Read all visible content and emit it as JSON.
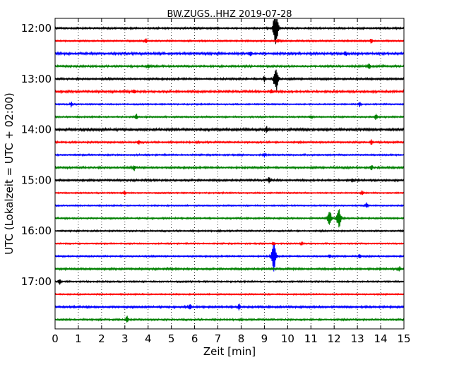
{
  "chart_data": {
    "type": "line",
    "title": "BW.ZUGS..HHZ 2019-07-28",
    "xlabel": "Zeit  [min]",
    "ylabel": "UTC (Lokalzeit = UTC + 02:00)",
    "xlim": [
      0,
      15
    ],
    "x_ticks": [
      "0",
      "1",
      "2",
      "3",
      "4",
      "5",
      "6",
      "7",
      "8",
      "9",
      "10",
      "11",
      "12",
      "13",
      "14",
      "15"
    ],
    "y_ticks": [
      {
        "label": "12:00",
        "trace": 0
      },
      {
        "label": "13:00",
        "trace": 4
      },
      {
        "label": "14:00",
        "trace": 8
      },
      {
        "label": "15:00",
        "trace": 12
      },
      {
        "label": "16:00",
        "trace": 16
      },
      {
        "label": "17:00",
        "trace": 20
      }
    ],
    "trace_interval_min": 15,
    "grid": "vertical-dotted",
    "colors": [
      "#000000",
      "#ff0000",
      "#0000ff",
      "#008000"
    ],
    "traces": [
      {
        "label": "12:00",
        "color_index": 0,
        "noise": 0.9,
        "events": [
          {
            "t": 9.4,
            "amp": 6
          },
          {
            "t": 9.5,
            "amp": 26
          }
        ]
      },
      {
        "label": "12:15",
        "color_index": 1,
        "noise": 0.8,
        "events": [
          {
            "t": 3.9,
            "amp": 3
          },
          {
            "t": 9.6,
            "amp": 3
          },
          {
            "t": 13.6,
            "amp": 4
          }
        ]
      },
      {
        "label": "12:30",
        "color_index": 2,
        "noise": 1.2,
        "events": [
          {
            "t": 8.4,
            "amp": 3
          },
          {
            "t": 12.5,
            "amp": 3
          }
        ]
      },
      {
        "label": "12:45",
        "color_index": 3,
        "noise": 1.0,
        "events": [
          {
            "t": 4.0,
            "amp": 3
          },
          {
            "t": 13.5,
            "amp": 4
          }
        ]
      },
      {
        "label": "13:00",
        "color_index": 0,
        "noise": 1.0,
        "events": [
          {
            "t": 9.0,
            "amp": 4
          },
          {
            "t": 9.5,
            "amp": 18
          }
        ]
      },
      {
        "label": "13:15",
        "color_index": 1,
        "noise": 1.1,
        "events": [
          {
            "t": 3.4,
            "amp": 3
          },
          {
            "t": 9.3,
            "amp": 3
          }
        ]
      },
      {
        "label": "13:30",
        "color_index": 2,
        "noise": 0.7,
        "events": [
          {
            "t": 0.7,
            "amp": 4
          },
          {
            "t": 13.1,
            "amp": 4
          }
        ]
      },
      {
        "label": "13:45",
        "color_index": 3,
        "noise": 0.8,
        "events": [
          {
            "t": 3.5,
            "amp": 4
          },
          {
            "t": 11.0,
            "amp": 3
          },
          {
            "t": 13.8,
            "amp": 4
          }
        ]
      },
      {
        "label": "14:00",
        "color_index": 0,
        "noise": 1.3,
        "events": [
          {
            "t": 9.1,
            "amp": 4
          }
        ]
      },
      {
        "label": "14:15",
        "color_index": 1,
        "noise": 0.9,
        "events": [
          {
            "t": 3.6,
            "amp": 3
          },
          {
            "t": 13.6,
            "amp": 4
          }
        ]
      },
      {
        "label": "14:30",
        "color_index": 2,
        "noise": 0.8,
        "events": [
          {
            "t": 9.0,
            "amp": 3
          }
        ]
      },
      {
        "label": "14:45",
        "color_index": 3,
        "noise": 1.0,
        "events": [
          {
            "t": 3.4,
            "amp": 4
          },
          {
            "t": 13.6,
            "amp": 4
          }
        ]
      },
      {
        "label": "15:00",
        "color_index": 0,
        "noise": 1.0,
        "events": [
          {
            "t": 9.2,
            "amp": 4
          },
          {
            "t": 12.8,
            "amp": 3
          }
        ]
      },
      {
        "label": "15:15",
        "color_index": 1,
        "noise": 0.7,
        "events": [
          {
            "t": 3.0,
            "amp": 3
          },
          {
            "t": 13.2,
            "amp": 4
          }
        ]
      },
      {
        "label": "15:30",
        "color_index": 2,
        "noise": 0.7,
        "events": [
          {
            "t": 13.4,
            "amp": 4
          }
        ]
      },
      {
        "label": "15:45",
        "color_index": 3,
        "noise": 0.8,
        "events": [
          {
            "t": 11.8,
            "amp": 10
          },
          {
            "t": 12.2,
            "amp": 14
          }
        ]
      },
      {
        "label": "16:00",
        "color_index": 0,
        "noise": 0.8,
        "events": []
      },
      {
        "label": "16:15",
        "color_index": 1,
        "noise": 0.7,
        "events": [
          {
            "t": 9.4,
            "amp": 3
          },
          {
            "t": 10.6,
            "amp": 3
          }
        ]
      },
      {
        "label": "16:30",
        "color_index": 2,
        "noise": 0.8,
        "events": [
          {
            "t": 9.4,
            "amp": 22
          },
          {
            "t": 11.8,
            "amp": 3
          },
          {
            "t": 13.1,
            "amp": 3
          }
        ]
      },
      {
        "label": "16:45",
        "color_index": 3,
        "noise": 1.0,
        "events": [
          {
            "t": 14.8,
            "amp": 3
          }
        ]
      },
      {
        "label": "17:00",
        "color_index": 0,
        "noise": 0.8,
        "events": [
          {
            "t": 0.2,
            "amp": 4
          }
        ]
      },
      {
        "label": "17:15",
        "color_index": 1,
        "noise": 0.7,
        "events": []
      },
      {
        "label": "17:30",
        "color_index": 2,
        "noise": 1.0,
        "events": [
          {
            "t": 5.8,
            "amp": 4
          },
          {
            "t": 7.9,
            "amp": 5
          }
        ]
      },
      {
        "label": "17:45",
        "color_index": 3,
        "noise": 0.9,
        "events": [
          {
            "t": 3.1,
            "amp": 6
          }
        ]
      }
    ]
  }
}
